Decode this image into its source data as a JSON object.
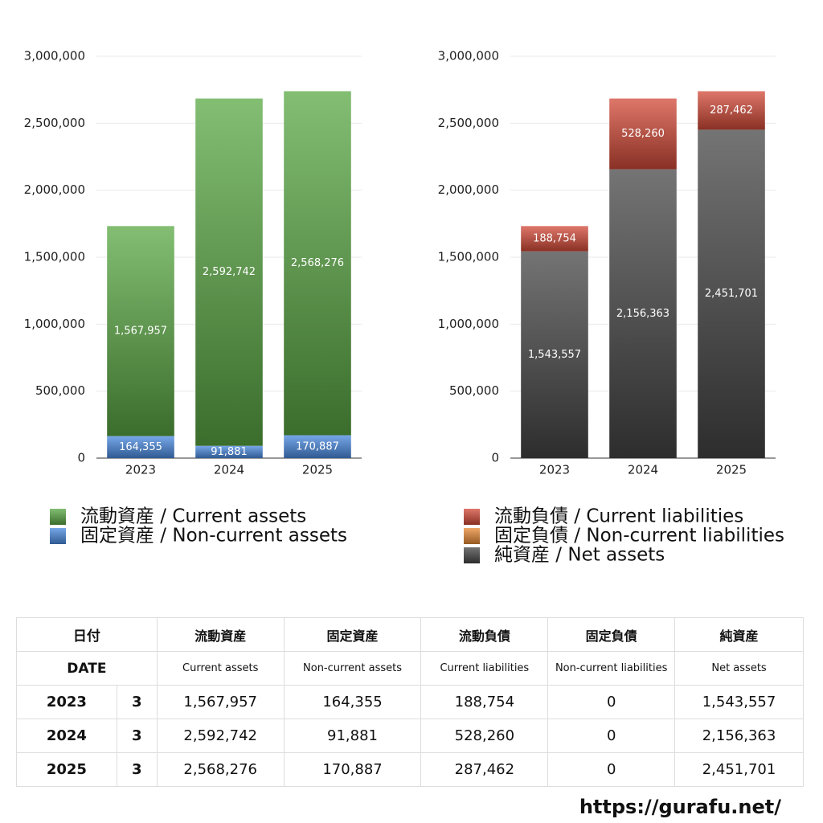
{
  "chart_data": [
    {
      "type": "bar",
      "stacked": true,
      "categories": [
        "2023",
        "2024",
        "2025"
      ],
      "series": [
        {
          "name": "流動資産 / Current assets",
          "color": "#5aa844",
          "values": [
            1567957,
            2592742,
            2568276
          ],
          "value_labels": [
            "1,567,957",
            "2,592,742",
            "2,568,276"
          ]
        },
        {
          "name": "固定資産 / Non-current assets",
          "color": "#4a8ae0",
          "values": [
            164355,
            91881,
            170887
          ],
          "value_labels": [
            "164,355",
            "91,881",
            "170,887"
          ]
        }
      ],
      "ylim": [
        0,
        3000000
      ],
      "yticks": [
        0,
        {
          "value": 500000,
          "label": "500,000"
        },
        {
          "value": 1000000,
          "label": "1,000,000"
        },
        {
          "value": 1500000,
          "label": "1,500,000"
        },
        {
          "value": 2000000,
          "label": "2,000,000"
        },
        {
          "value": 2500000,
          "label": "2,500,000"
        },
        {
          "value": 3000000,
          "label": "3,000,000"
        }
      ],
      "grid": true
    },
    {
      "type": "bar",
      "stacked": true,
      "categories": [
        "2023",
        "2024",
        "2025"
      ],
      "series": [
        {
          "name": "流動負債 / Current liabilities",
          "color": "#d34a38",
          "values": [
            188754,
            528260,
            287462
          ],
          "value_labels": [
            "188,754",
            "528,260",
            "287,462"
          ]
        },
        {
          "name": "固定負債 / Non-current liabilities",
          "color": "#e88a35",
          "values": [
            0,
            0,
            0
          ],
          "value_labels": [
            null,
            null,
            null
          ]
        },
        {
          "name": "純資産 / Net assets",
          "color": "#454545",
          "values": [
            1543557,
            2156363,
            2451701
          ],
          "value_labels": [
            "1,543,557",
            "2,156,363",
            "2,451,701"
          ]
        }
      ],
      "ylim": [
        0,
        3000000
      ],
      "yticks": [
        0,
        {
          "value": 500000,
          "label": "500,000"
        },
        {
          "value": 1000000,
          "label": "1,000,000"
        },
        {
          "value": 1500000,
          "label": "1,500,000"
        },
        {
          "value": 2000000,
          "label": "2,000,000"
        },
        {
          "value": 2500000,
          "label": "2,500,000"
        },
        {
          "value": 3000000,
          "label": "3,000,000"
        }
      ],
      "grid": true
    }
  ],
  "table": {
    "header": [
      [
        "日付",
        "流動資産",
        "固定資産",
        "流動負債",
        "固定負債",
        "純資産"
      ],
      [
        "DATE",
        "Current assets",
        "Non-current assets",
        "Current liabilities",
        "Non-current liabilities",
        "Net assets"
      ]
    ],
    "rows": [
      [
        "2023",
        "3",
        "1,567,957",
        "164,355",
        "188,754",
        "0",
        "1,543,557"
      ],
      [
        "2024",
        "3",
        "2,592,742",
        "91,881",
        "528,260",
        "0",
        "2,156,363"
      ],
      [
        "2025",
        "3",
        "2,568,276",
        "170,887",
        "287,462",
        "0",
        "2,451,701"
      ]
    ]
  },
  "footer": {
    "url": "https://gurafu.net/"
  }
}
